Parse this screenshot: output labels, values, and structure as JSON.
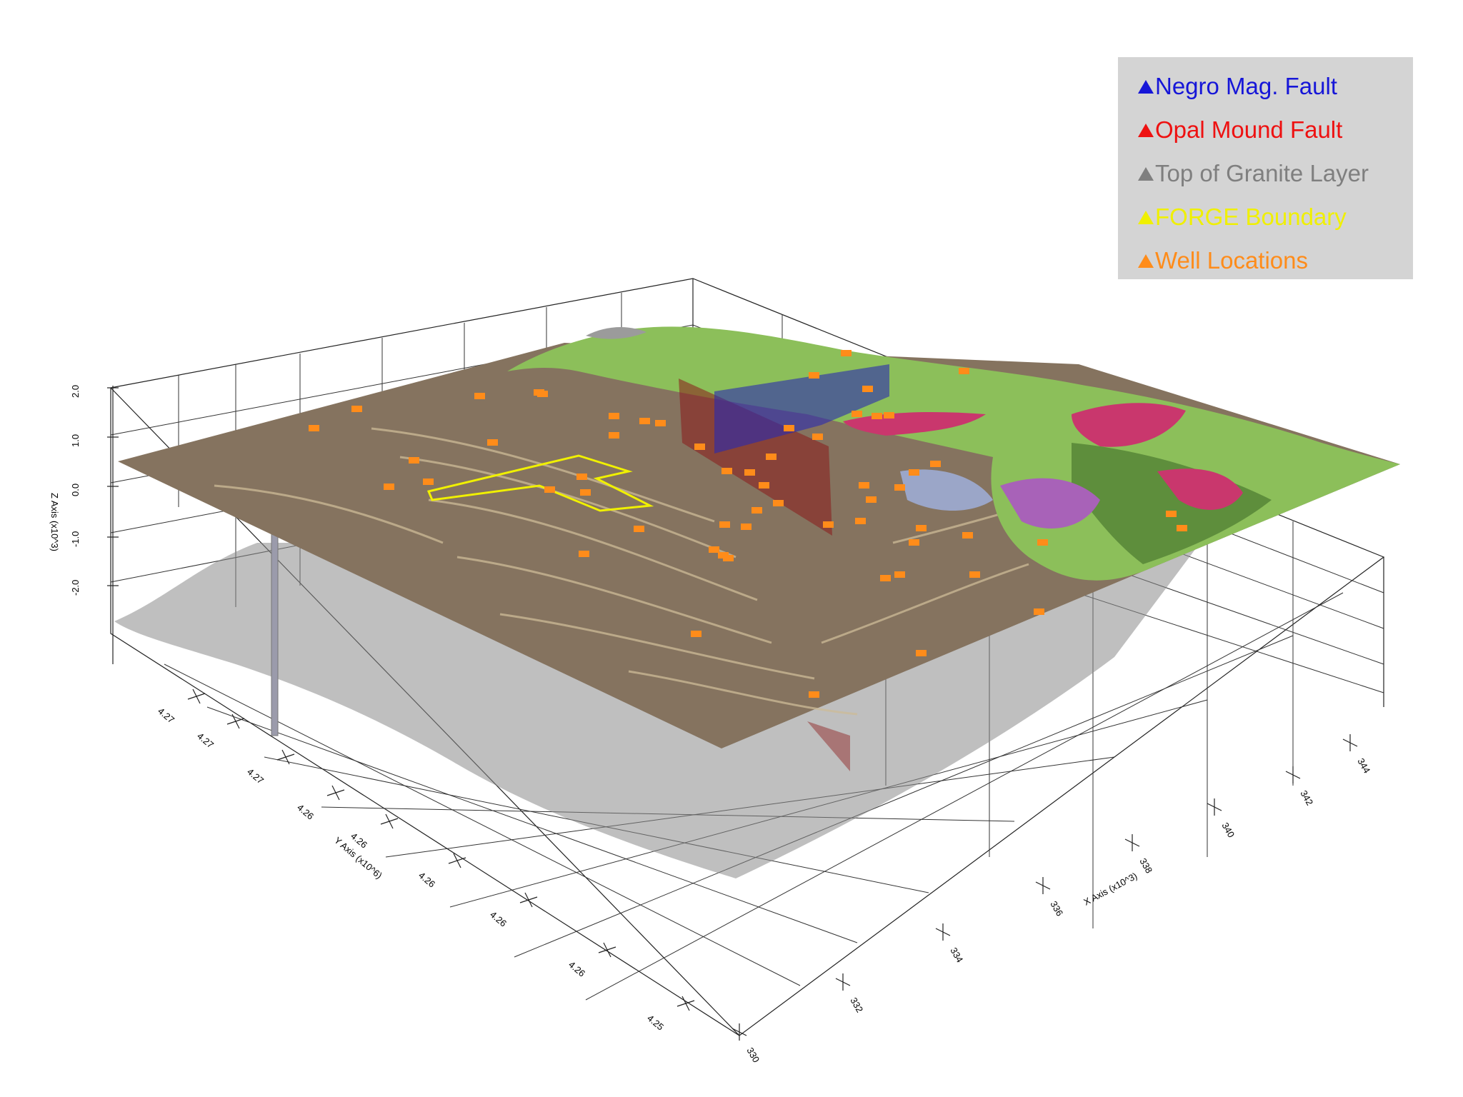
{
  "legend": {
    "items": [
      {
        "label": "Negro Mag. Fault",
        "color": "#1616d8",
        "icon": "triangle-icon"
      },
      {
        "label": "Opal Mound Fault",
        "color": "#ee1111",
        "icon": "triangle-icon"
      },
      {
        "label": "Top of Granite Layer",
        "color": "#7f7f7f",
        "icon": "triangle-icon"
      },
      {
        "label": "FORGE Boundary",
        "color": "#f0f000",
        "icon": "triangle-icon"
      },
      {
        "label": "Well Locations",
        "color": "#ff8c1a",
        "icon": "triangle-icon"
      }
    ]
  },
  "axes": {
    "x": {
      "title": "X Axis (x10^3)",
      "ticks": [
        "330",
        "332",
        "334",
        "336",
        "338",
        "340",
        "342",
        "344"
      ]
    },
    "y": {
      "title": "Y Axis (x10^6)",
      "ticks": [
        "4.25",
        "4.26",
        "4.26",
        "4.26",
        "4.26",
        "4.26",
        "4.27",
        "4.27",
        "4.27"
      ]
    },
    "z": {
      "title": "Z Axis (x10^3)",
      "ticks": [
        "2.0",
        "1.0",
        "0.0",
        "-1.0",
        "-2.0"
      ]
    }
  },
  "colors": {
    "terrain": "#85735f",
    "terrain_dark": "#6f5f4e",
    "vegetation": "#8cbf5a",
    "vegetation_dark": "#5e8e3c",
    "geology_pink": "#c9376d",
    "geology_purple": "#a862b8",
    "geology_blue": "#9ba6c8",
    "granite": "#8a8a8a",
    "opal_fault": "#8b1a1a",
    "negro_fault": "#2a2ab0",
    "forge": "#f0f000",
    "wells": "#ff8c1a"
  }
}
